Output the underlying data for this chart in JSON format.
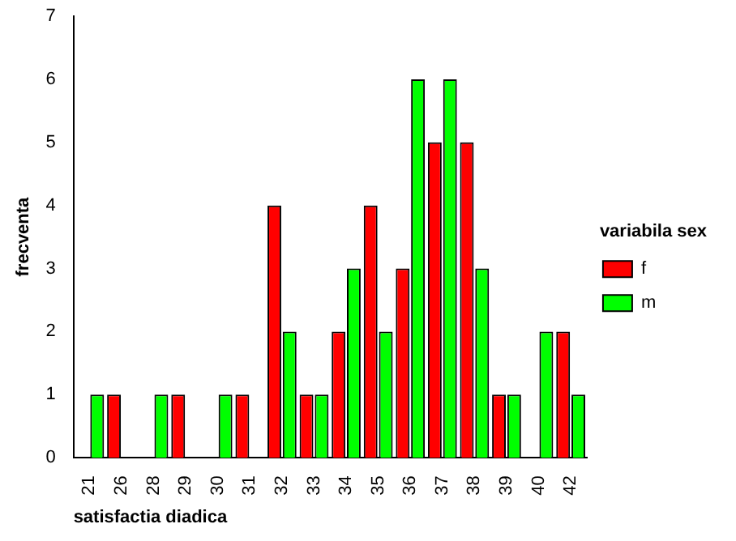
{
  "chart_data": {
    "type": "bar",
    "xlabel": "satisfactia diadica",
    "ylabel": "frecventa",
    "legend_title": "variabila sex",
    "categories": [
      "21",
      "26",
      "28",
      "29",
      "30",
      "31",
      "32",
      "33",
      "34",
      "35",
      "36",
      "37",
      "38",
      "39",
      "40",
      "42"
    ],
    "series": [
      {
        "name": "f",
        "color": "#ff0000",
        "values": [
          0,
          1,
          0,
          1,
          0,
          1,
          4,
          1,
          2,
          4,
          3,
          5,
          5,
          1,
          0,
          2
        ]
      },
      {
        "name": "m",
        "color": "#00ff00",
        "values": [
          1,
          0,
          1,
          0,
          1,
          0,
          2,
          1,
          3,
          2,
          6,
          6,
          3,
          1,
          2,
          1
        ]
      }
    ],
    "ylim": [
      0,
      7
    ],
    "yticks": [
      0,
      1,
      2,
      3,
      4,
      5,
      6,
      7
    ],
    "grid": false,
    "legend": "right"
  }
}
